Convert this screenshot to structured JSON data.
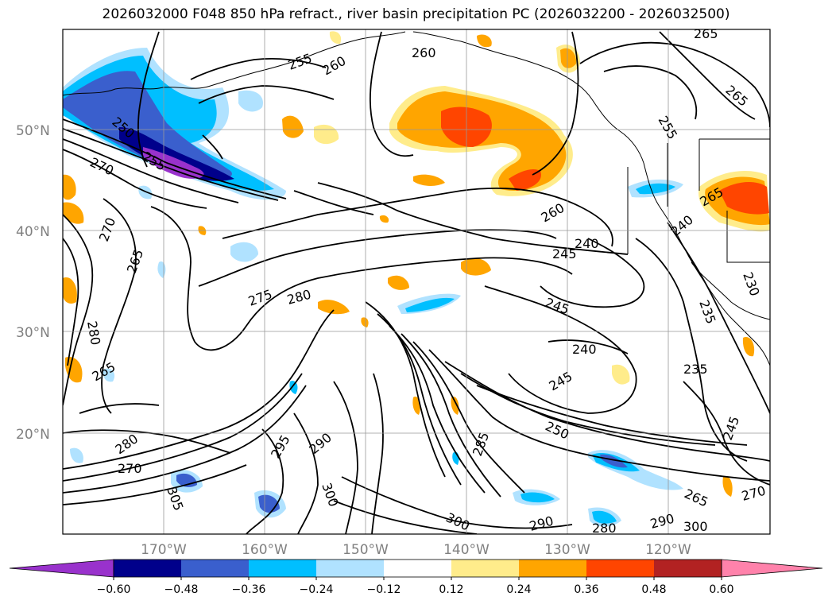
{
  "title": "2026032000 F048 850 hPa refract., river basin precipitation PC (2026032200 - 2026032500)",
  "lat_labels": [
    "50°N",
    "40°N",
    "30°N",
    "20°N"
  ],
  "lon_labels": [
    "170°W",
    "160°W",
    "150°W",
    "140°W",
    "130°W",
    "120°W"
  ],
  "colorbar": {
    "ticks": [
      "−0.60",
      "−0.48",
      "−0.36",
      "−0.24",
      "−0.12",
      "0.12",
      "0.24",
      "0.36",
      "0.48",
      "0.60"
    ],
    "colors": [
      "#9932cc",
      "#00008b",
      "#3a5fcd",
      "#00bfff",
      "#b0e2ff",
      "#ffffff",
      "#ffec8b",
      "#ffa500",
      "#ff4500",
      "#b22222",
      "#ff82ab"
    ]
  },
  "contour_labels": [
    "265",
    "260",
    "255",
    "260",
    "265",
    "250",
    "255",
    "270",
    "265",
    "270",
    "275",
    "280",
    "260",
    "245",
    "240",
    "245",
    "240",
    "245",
    "235",
    "230",
    "240",
    "265",
    "265",
    "290",
    "300",
    "285",
    "290",
    "300",
    "305",
    "280",
    "270",
    "290",
    "250",
    "265",
    "270",
    "300",
    "280",
    "295",
    "235",
    "245",
    "280",
    "255"
  ]
}
